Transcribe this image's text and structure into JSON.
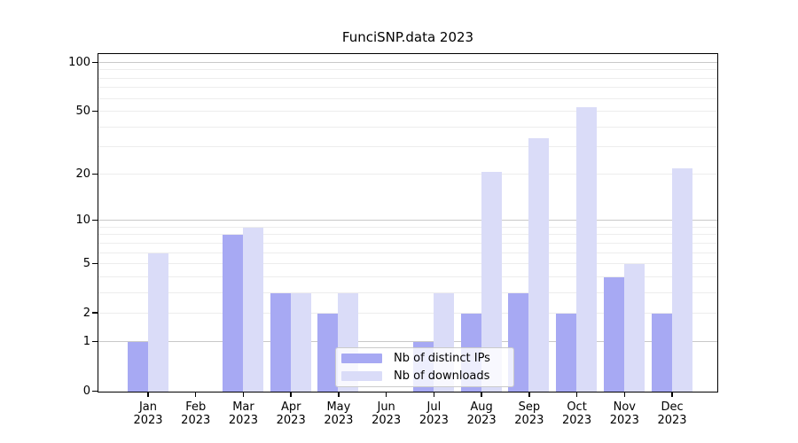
{
  "chart_data": {
    "type": "bar",
    "title": "FunciSNP.data 2023",
    "categories": [
      "Jan",
      "Feb",
      "Mar",
      "Apr",
      "May",
      "Jun",
      "Jul",
      "Aug",
      "Sep",
      "Oct",
      "Nov",
      "Dec"
    ],
    "category_year": "2023",
    "series": [
      {
        "name": "Nb of distinct IPs",
        "key": "distinct-ips",
        "color": "#a7a9f3",
        "values": [
          1,
          0,
          8,
          3,
          2,
          0,
          1,
          2,
          3,
          2,
          4,
          2
        ]
      },
      {
        "name": "Nb of downloads",
        "key": "downloads",
        "color": "#dadcf8",
        "values": [
          6,
          0,
          9,
          3,
          3,
          0,
          3,
          21,
          34,
          53,
          5,
          22
        ]
      }
    ],
    "yscale": "log1p",
    "ylim": [
      0,
      112
    ],
    "yticks": [
      0,
      1,
      2,
      5,
      10,
      20,
      50,
      100
    ],
    "major_gridlines": [
      1,
      10,
      100
    ],
    "minor_gridlines": [
      2,
      3,
      4,
      5,
      6,
      7,
      8,
      9,
      20,
      30,
      40,
      50,
      60,
      70,
      80,
      90
    ],
    "grid": "on",
    "legend_position": "lower center",
    "colors": {
      "major_grid": "#c9c9c9",
      "minor_grid": "#ededed",
      "axis": "#000000",
      "text": "#000000",
      "legend_border": "#cbcbcb"
    }
  }
}
